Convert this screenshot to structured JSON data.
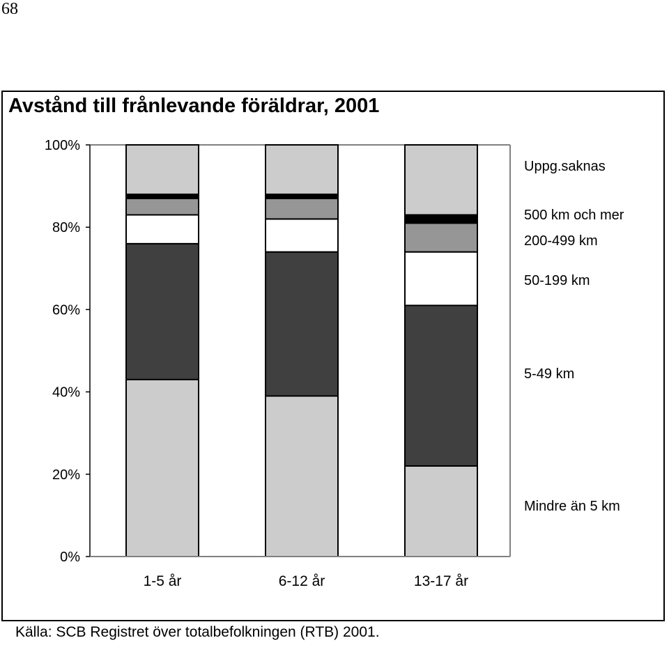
{
  "page_number": "68",
  "source_note": "Källa: SCB Registret över  totalbefolkningen (RTB) 2001.",
  "chart_data": {
    "type": "bar",
    "stacked": true,
    "percent_stacked": true,
    "title": "Avstånd till frånlevande föräldrar, 2001",
    "categories": [
      "1-5 år",
      "6-12 år",
      "13-17 år"
    ],
    "ylim": [
      0,
      100
    ],
    "y_ticks": [
      0,
      20,
      40,
      60,
      80,
      100
    ],
    "y_tick_labels": [
      "0%",
      "20%",
      "40%",
      "60%",
      "80%",
      "100%"
    ],
    "grid": false,
    "legend_placement": "right",
    "series": [
      {
        "name": "Mindre än 5 km",
        "values": [
          43,
          39,
          22
        ],
        "color": "#cccccc"
      },
      {
        "name": "5-49 km",
        "values": [
          33,
          35,
          39
        ],
        "color": "#404040"
      },
      {
        "name": "50-199 km",
        "values": [
          7,
          8,
          13
        ],
        "color": "#ffffff"
      },
      {
        "name": "200-499 km",
        "values": [
          4,
          5,
          7
        ],
        "color": "#969696"
      },
      {
        "name": "500 km och mer",
        "values": [
          1,
          1,
          2
        ],
        "color": "#000000"
      },
      {
        "name": "Uppg.saknas",
        "values": [
          12,
          12,
          17
        ],
        "color": "#cccccc"
      }
    ]
  }
}
